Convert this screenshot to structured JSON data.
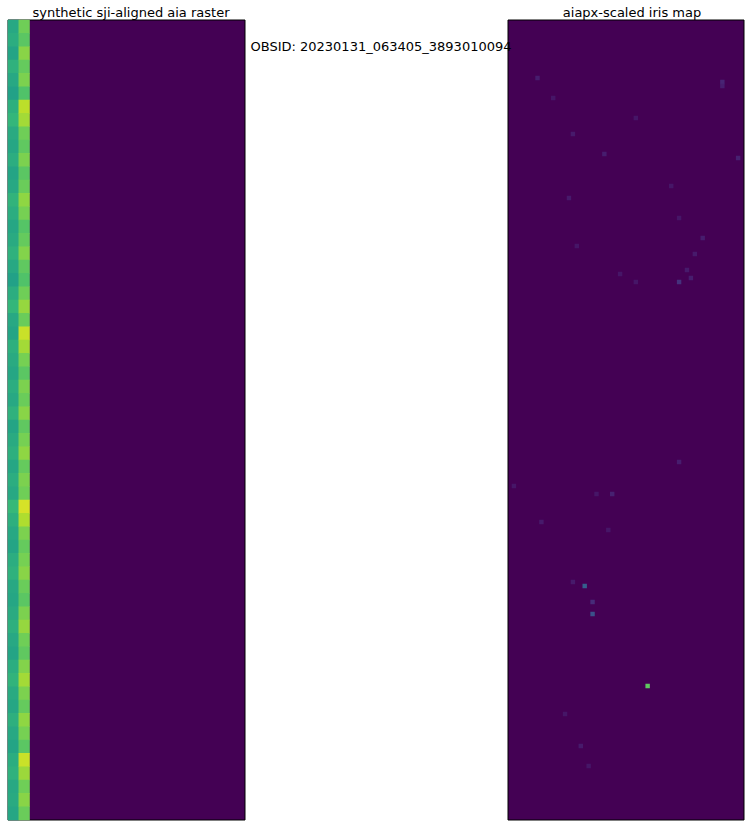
{
  "title": "OBSID: 20230131_063405_3893010094",
  "chart_data": [
    {
      "type": "heatmap",
      "title": "synthetic sji-aligned aia raster",
      "xlim": [
        0,
        22
      ],
      "ylim": [
        0,
        60
      ],
      "clim": [
        0,
        1
      ],
      "tick_labels": false,
      "cells": [
        [
          0,
          0,
          0.6
        ],
        [
          0,
          1,
          0.62
        ],
        [
          0,
          2,
          0.58
        ],
        [
          0,
          3,
          0.64
        ],
        [
          0,
          4,
          0.6
        ],
        [
          0,
          5,
          0.57
        ],
        [
          0,
          6,
          0.63
        ],
        [
          0,
          7,
          0.66
        ],
        [
          0,
          8,
          0.61
        ],
        [
          0,
          9,
          0.59
        ],
        [
          0,
          10,
          0.62
        ],
        [
          0,
          11,
          0.58
        ],
        [
          0,
          12,
          0.6
        ],
        [
          0,
          13,
          0.65
        ],
        [
          0,
          14,
          0.62
        ],
        [
          0,
          15,
          0.59
        ],
        [
          0,
          16,
          0.61
        ],
        [
          0,
          17,
          0.64
        ],
        [
          0,
          18,
          0.6
        ],
        [
          0,
          19,
          0.57
        ],
        [
          0,
          20,
          0.62
        ],
        [
          0,
          21,
          0.66
        ],
        [
          0,
          22,
          0.6
        ],
        [
          0,
          23,
          0.58
        ],
        [
          0,
          24,
          0.63
        ],
        [
          0,
          25,
          0.61
        ],
        [
          0,
          26,
          0.59
        ],
        [
          0,
          27,
          0.62
        ],
        [
          0,
          28,
          0.6
        ],
        [
          0,
          29,
          0.64
        ],
        [
          0,
          30,
          0.58
        ],
        [
          0,
          31,
          0.61
        ],
        [
          0,
          32,
          0.63
        ],
        [
          0,
          33,
          0.59
        ],
        [
          0,
          34,
          0.62
        ],
        [
          0,
          35,
          0.6
        ],
        [
          0,
          36,
          0.67
        ],
        [
          0,
          37,
          0.63
        ],
        [
          0,
          38,
          0.6
        ],
        [
          0,
          39,
          0.58
        ],
        [
          0,
          40,
          0.62
        ],
        [
          0,
          41,
          0.64
        ],
        [
          0,
          42,
          0.6
        ],
        [
          0,
          43,
          0.59
        ],
        [
          0,
          44,
          0.61
        ],
        [
          0,
          45,
          0.63
        ],
        [
          0,
          46,
          0.6
        ],
        [
          0,
          47,
          0.58
        ],
        [
          0,
          48,
          0.62
        ],
        [
          0,
          49,
          0.65
        ],
        [
          0,
          50,
          0.61
        ],
        [
          0,
          51,
          0.59
        ],
        [
          0,
          52,
          0.63
        ],
        [
          0,
          53,
          0.6
        ],
        [
          0,
          54,
          0.58
        ],
        [
          0,
          55,
          0.62
        ],
        [
          0,
          56,
          0.64
        ],
        [
          0,
          57,
          0.6
        ],
        [
          0,
          58,
          0.61
        ],
        [
          0,
          59,
          0.59
        ],
        [
          1,
          0,
          0.78
        ],
        [
          1,
          1,
          0.74
        ],
        [
          1,
          2,
          0.82
        ],
        [
          1,
          3,
          0.76
        ],
        [
          1,
          4,
          0.8
        ],
        [
          1,
          5,
          0.72
        ],
        [
          1,
          6,
          0.9
        ],
        [
          1,
          7,
          0.86
        ],
        [
          1,
          8,
          0.78
        ],
        [
          1,
          9,
          0.75
        ],
        [
          1,
          10,
          0.8
        ],
        [
          1,
          11,
          0.74
        ],
        [
          1,
          12,
          0.77
        ],
        [
          1,
          13,
          0.83
        ],
        [
          1,
          14,
          0.79
        ],
        [
          1,
          15,
          0.73
        ],
        [
          1,
          16,
          0.76
        ],
        [
          1,
          17,
          0.81
        ],
        [
          1,
          18,
          0.75
        ],
        [
          1,
          19,
          0.72
        ],
        [
          1,
          20,
          0.78
        ],
        [
          1,
          21,
          0.84
        ],
        [
          1,
          22,
          0.77
        ],
        [
          1,
          23,
          0.92
        ],
        [
          1,
          24,
          0.86
        ],
        [
          1,
          25,
          0.79
        ],
        [
          1,
          26,
          0.74
        ],
        [
          1,
          27,
          0.8
        ],
        [
          1,
          28,
          0.77
        ],
        [
          1,
          29,
          0.82
        ],
        [
          1,
          30,
          0.75
        ],
        [
          1,
          31,
          0.79
        ],
        [
          1,
          32,
          0.83
        ],
        [
          1,
          33,
          0.76
        ],
        [
          1,
          34,
          0.8
        ],
        [
          1,
          35,
          0.78
        ],
        [
          1,
          36,
          0.94
        ],
        [
          1,
          37,
          0.88
        ],
        [
          1,
          38,
          0.8
        ],
        [
          1,
          39,
          0.76
        ],
        [
          1,
          40,
          0.79
        ],
        [
          1,
          41,
          0.82
        ],
        [
          1,
          42,
          0.77
        ],
        [
          1,
          43,
          0.74
        ],
        [
          1,
          44,
          0.8
        ],
        [
          1,
          45,
          0.84
        ],
        [
          1,
          46,
          0.78
        ],
        [
          1,
          47,
          0.75
        ],
        [
          1,
          48,
          0.81
        ],
        [
          1,
          49,
          0.86
        ],
        [
          1,
          50,
          0.8
        ],
        [
          1,
          51,
          0.76
        ],
        [
          1,
          52,
          0.83
        ],
        [
          1,
          53,
          0.79
        ],
        [
          1,
          54,
          0.74
        ],
        [
          1,
          55,
          0.92
        ],
        [
          1,
          56,
          0.85
        ],
        [
          1,
          57,
          0.78
        ],
        [
          1,
          58,
          0.82
        ],
        [
          1,
          59,
          0.77
        ]
      ]
    },
    {
      "type": "heatmap",
      "title": "aiapx-scaled iris map",
      "xlim": [
        0,
        60
      ],
      "ylim": [
        0,
        200
      ],
      "clim": [
        0,
        1
      ],
      "tick_labels": false,
      "cells": [
        [
          7,
          14,
          0.08
        ],
        [
          11,
          19,
          0.06
        ],
        [
          54,
          15,
          0.1
        ],
        [
          54,
          16,
          0.08
        ],
        [
          16,
          28,
          0.07
        ],
        [
          32,
          24,
          0.06
        ],
        [
          24,
          33,
          0.08
        ],
        [
          58,
          34,
          0.09
        ],
        [
          41,
          41,
          0.06
        ],
        [
          15,
          44,
          0.07
        ],
        [
          43,
          49,
          0.06
        ],
        [
          49,
          54,
          0.08
        ],
        [
          17,
          56,
          0.06
        ],
        [
          47,
          58,
          0.07
        ],
        [
          45,
          62,
          0.07
        ],
        [
          28,
          63,
          0.06
        ],
        [
          46,
          64,
          0.08
        ],
        [
          43,
          65,
          0.14
        ],
        [
          32,
          65,
          0.06
        ],
        [
          43,
          110,
          0.08
        ],
        [
          1,
          116,
          0.06
        ],
        [
          26,
          118,
          0.09
        ],
        [
          22,
          118,
          0.06
        ],
        [
          8,
          125,
          0.07
        ],
        [
          25,
          127,
          0.06
        ],
        [
          16,
          140,
          0.07
        ],
        [
          19,
          141,
          0.3
        ],
        [
          21,
          145,
          0.12
        ],
        [
          21,
          148,
          0.25
        ],
        [
          35,
          166,
          0.75
        ],
        [
          14,
          173,
          0.06
        ],
        [
          18,
          181,
          0.07
        ],
        [
          20,
          186,
          0.06
        ]
      ]
    }
  ]
}
